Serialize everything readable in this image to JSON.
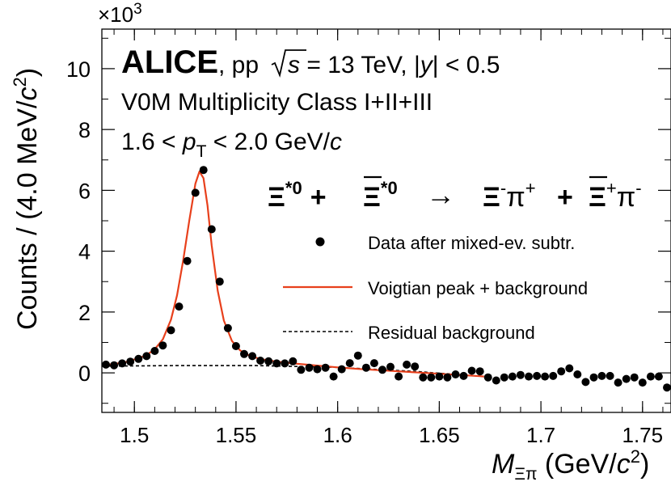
{
  "chart_data": {
    "type": "scatter",
    "colors": {
      "data": "#000000",
      "fit": "#e8401c",
      "background": "#000000"
    },
    "xlim": [
      1.484,
      1.764
    ],
    "ylim": [
      -1.3,
      11.3
    ],
    "y_multiplier_label": "×10",
    "y_multiplier_exp": "3",
    "ylabel": "Counts / (4.0 MeV/c²)",
    "xlabel": "M_Ξπ (GeV/c²)",
    "xlabel_main": "M",
    "xlabel_sub": "Ξπ",
    "xlabel_rest": " (GeV/",
    "xlabel_c": "c",
    "xlabel_sup": "2",
    "xlabel_close": ")",
    "ylabel_main": "Counts / (4.0 MeV/",
    "ylabel_c": "c",
    "ylabel_sup": "2",
    "ylabel_close": ")",
    "xticks": [
      {
        "value": 1.5,
        "label": "1.5"
      },
      {
        "value": 1.55,
        "label": "1.55"
      },
      {
        "value": 1.6,
        "label": "1.6"
      },
      {
        "value": 1.65,
        "label": "1.65"
      },
      {
        "value": 1.7,
        "label": "1.7"
      },
      {
        "value": 1.75,
        "label": "1.75"
      }
    ],
    "yticks": [
      {
        "value": 0,
        "label": "0"
      },
      {
        "value": 2,
        "label": "2"
      },
      {
        "value": 4,
        "label": "4"
      },
      {
        "value": 6,
        "label": "6"
      },
      {
        "value": 8,
        "label": "8"
      },
      {
        "value": 10,
        "label": "10"
      }
    ],
    "annotations": {
      "experiment": "ALICE",
      "system": ", pp",
      "energy_sqrt": "s",
      "energy_value": " = 13 TeV, |",
      "rapidity": "y",
      "rapidity_cut": "| < 0.5",
      "multiplicity": "V0M Multiplicity Class I+II+III",
      "pt_lo": "1.6 < ",
      "pt_p": "p",
      "pt_T": "T",
      "pt_hi": " < 2.0 GeV/",
      "pt_c": "c",
      "decay_lhs1": "Ξ",
      "decay_lhs1_sup": "*0",
      "decay_plus": "+",
      "decay_lhs2": "Ξ",
      "decay_lhs2_sup": "*0",
      "decay_arrow": "→",
      "decay_rhs1": "Ξ",
      "decay_rhs1_sup": "-",
      "decay_pi1": "π",
      "decay_pi1_sup": "+",
      "decay_rhs2": "Ξ",
      "decay_rhs2_sup": "+",
      "decay_pi2": "π",
      "decay_pi2_sup": "-"
    },
    "legend": [
      {
        "label": "Data after mixed-ev. subtr.",
        "style": "marker"
      },
      {
        "label": "Voigtian peak + background",
        "style": "solid"
      },
      {
        "label": "Residual background",
        "style": "dashed"
      }
    ],
    "series": [
      {
        "style": "marker",
        "x": [
          1.486,
          1.49,
          1.494,
          1.498,
          1.502,
          1.506,
          1.51,
          1.514,
          1.518,
          1.522,
          1.526,
          1.53,
          1.534,
          1.538,
          1.542,
          1.546,
          1.55,
          1.554,
          1.558,
          1.562,
          1.566,
          1.57,
          1.574,
          1.578,
          1.582,
          1.586,
          1.59,
          1.594,
          1.598,
          1.602,
          1.606,
          1.61,
          1.614,
          1.618,
          1.622,
          1.626,
          1.63,
          1.634,
          1.638,
          1.642,
          1.646,
          1.65,
          1.654,
          1.658,
          1.662,
          1.666,
          1.67,
          1.674,
          1.678,
          1.682,
          1.686,
          1.69,
          1.694,
          1.698,
          1.702,
          1.706,
          1.71,
          1.714,
          1.718,
          1.722,
          1.726,
          1.73,
          1.734,
          1.738,
          1.742,
          1.746,
          1.75,
          1.754,
          1.758,
          1.762
        ],
        "y": [
          0.27,
          0.25,
          0.31,
          0.37,
          0.46,
          0.55,
          0.72,
          0.9,
          1.4,
          2.18,
          3.68,
          5.92,
          6.67,
          4.72,
          3.0,
          1.47,
          0.88,
          0.62,
          0.55,
          0.4,
          0.38,
          0.31,
          0.31,
          0.38,
          0.1,
          0.17,
          0.12,
          0.17,
          -0.12,
          0.12,
          0.32,
          0.57,
          0.17,
          0.32,
          0.1,
          0.2,
          -0.12,
          0.27,
          0.21,
          -0.15,
          -0.15,
          -0.12,
          -0.15,
          -0.05,
          -0.1,
          0.07,
          0.05,
          -0.15,
          -0.25,
          -0.15,
          -0.12,
          -0.07,
          -0.12,
          -0.1,
          -0.12,
          -0.1,
          0.05,
          0.15,
          -0.05,
          -0.3,
          -0.15,
          -0.1,
          -0.1,
          -0.32,
          -0.2,
          -0.15,
          -0.32,
          -0.12,
          -0.12,
          -0.48
        ]
      },
      {
        "style": "solid",
        "x": [
          1.484,
          1.49,
          1.496,
          1.502,
          1.506,
          1.51,
          1.514,
          1.518,
          1.521,
          1.524,
          1.527,
          1.53,
          1.532,
          1.534,
          1.536,
          1.538,
          1.541,
          1.544,
          1.548,
          1.552,
          1.557,
          1.563,
          1.57,
          1.58,
          1.59,
          1.6,
          1.61,
          1.62,
          1.63,
          1.64,
          1.65,
          1.66,
          1.67,
          1.672
        ],
        "y": [
          0.25,
          0.29,
          0.36,
          0.48,
          0.58,
          0.78,
          1.1,
          1.75,
          2.55,
          3.7,
          5.0,
          6.22,
          6.62,
          6.4,
          5.5,
          4.2,
          2.7,
          1.72,
          1.05,
          0.74,
          0.55,
          0.44,
          0.37,
          0.3,
          0.24,
          0.18,
          0.13,
          0.09,
          0.05,
          0.01,
          -0.03,
          -0.07,
          -0.11,
          -0.12
        ]
      },
      {
        "style": "dashed",
        "x": [
          1.484,
          1.52,
          1.56,
          1.6,
          1.64,
          1.672
        ],
        "y": [
          0.22,
          0.24,
          0.24,
          0.18,
          0.04,
          -0.12
        ]
      }
    ]
  }
}
